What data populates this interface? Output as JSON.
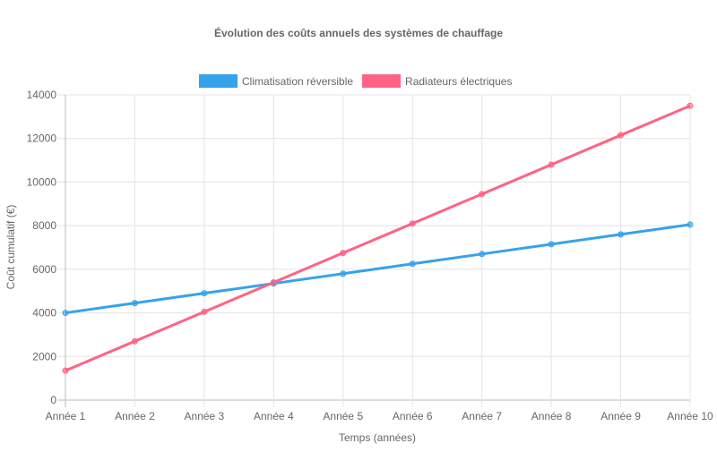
{
  "chart_data": {
    "type": "line",
    "title": "Évolution des coûts annuels des systèmes de chauffage",
    "xlabel": "Temps (années)",
    "ylabel": "Coût cumulatif (€)",
    "categories": [
      "Année 1",
      "Année 2",
      "Année 3",
      "Année 4",
      "Année 5",
      "Année 6",
      "Année 7",
      "Année 8",
      "Année 9",
      "Année 10"
    ],
    "ylim": [
      0,
      14000
    ],
    "yticks": [
      "0",
      "2000",
      "4000",
      "6000",
      "8000",
      "10000",
      "12000",
      "14000"
    ],
    "grid": true,
    "legend_placement": "top",
    "series": [
      {
        "name": "Climatisation réversible",
        "color": "#36a2eb",
        "values": [
          4000,
          4450,
          4900,
          5350,
          5800,
          6250,
          6700,
          7150,
          7600,
          8050
        ]
      },
      {
        "name": "Radiateurs électriques",
        "color": "#ff6384",
        "values": [
          1350,
          2700,
          4050,
          5400,
          6750,
          8100,
          9450,
          10800,
          12150,
          13500
        ]
      }
    ]
  }
}
